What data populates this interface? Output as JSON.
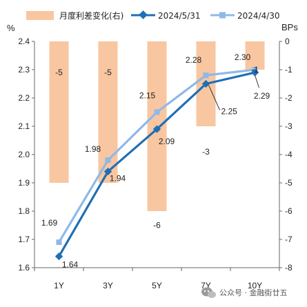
{
  "chart_data": {
    "type": "bar",
    "categories": [
      "1Y",
      "3Y",
      "5Y",
      "7Y",
      "10Y"
    ],
    "left_axis": {
      "unit": "%",
      "ylim": [
        1.6,
        2.4
      ],
      "ticks": [
        "1.6",
        "1.7",
        "1.8",
        "1.9",
        "2.0",
        "2.1",
        "2.2",
        "2.3",
        "2.4"
      ]
    },
    "right_axis": {
      "unit": "BPs",
      "ylim": [
        -8,
        0
      ],
      "ticks": [
        "-8",
        "-7",
        "-6",
        "-5",
        "-4",
        "-3",
        "-2",
        "-1",
        "0"
      ]
    },
    "series": [
      {
        "name": "月度利差变化(右)",
        "type": "bar",
        "axis": "right",
        "color": "#f8c6a0",
        "values": [
          -5,
          -5,
          -6,
          -3,
          -1
        ],
        "labels": [
          "-5",
          "-5",
          "-6",
          "-3",
          "-1"
        ]
      },
      {
        "name": "2024/5/31",
        "type": "line",
        "axis": "left",
        "color": "#1f6fb5",
        "marker": "diamond",
        "values": [
          1.64,
          1.94,
          2.09,
          2.25,
          2.29
        ],
        "labels": [
          "1.64",
          "1.94",
          "2.09",
          "2.25",
          "2.29"
        ]
      },
      {
        "name": "2024/4/30",
        "type": "line",
        "axis": "left",
        "color": "#8fb8e8",
        "marker": "square",
        "values": [
          1.69,
          1.98,
          2.15,
          2.28,
          2.3
        ],
        "labels": [
          "1.69",
          "1.98",
          "2.15",
          "2.28",
          "2.30"
        ]
      }
    ],
    "legend_position": "top",
    "grid": false
  },
  "watermark": {
    "icon": "wechat-icon",
    "text": "公众号 · 金融街廿五"
  }
}
